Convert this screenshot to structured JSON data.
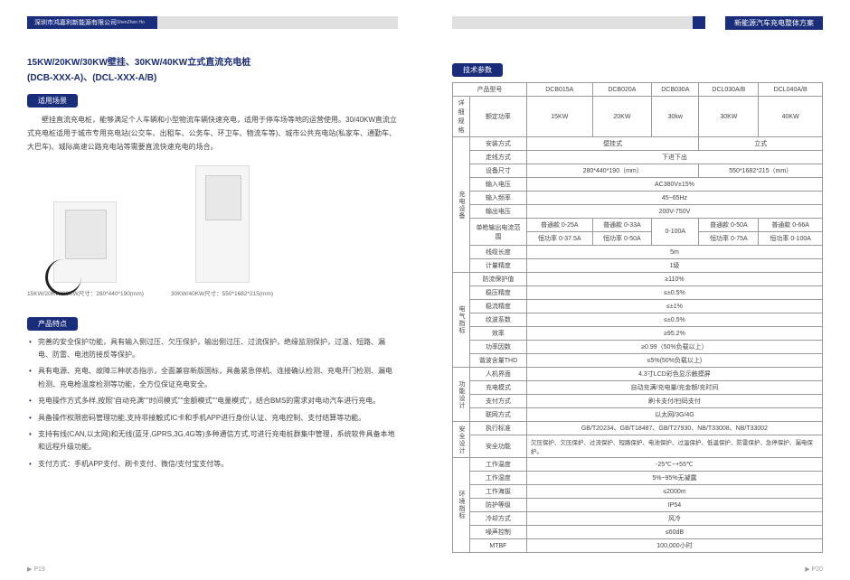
{
  "header": {
    "company_cn": "深圳市鸿嘉利新能源有限公司",
    "company_en": "ShenZhen HongJiaLi New Energy Co.,Ltd",
    "doc_title": "新能源汽车充电整体方案"
  },
  "product": {
    "title1": "15KW/20KW/30KW壁挂、30KW/40KW立式直流充电桩",
    "title2": "(DCB-XXX-A)、(DCL-XXX-A/B)"
  },
  "sections": {
    "scene": "适用场景",
    "features": "产品特点",
    "params": "技术参数"
  },
  "scene_text": "壁挂直流充电桩，能够满足个人车辆和小型物流车辆快速充电，适用于停车场等地的运营使用。30/40KW直流立式充电桩适用于城市专用充电站(公交车、出租车、公务车、环卫车、物流车等)、城市公共充电站(私家车、通勤车、大巴车)、城际高速公路充电站等需要直流快速充电的场合。",
  "captions": {
    "wall": "15KW/20KW/30KW尺寸：280*440*190(mm)",
    "stand": "30KW/40KW尺寸：550*1682*215(mm)"
  },
  "features": [
    "完善的安全保护功能，具有输入侧过压、欠压保护，输出侧过压、过流保护，绝缘监测保护，过温、短路、漏电、防雷、电池防接反等保护。",
    "具有电源、充电、故障三种状态指示，全面兼容新版国标，具备紧急停机、连接确认检测、充电开门检测、漏电检测、充电枪温度检测等功能，全方位保证充电安全。",
    "充电操作方式多样,按照\"自动充满\"\"时间模式\"\"金额模式\"\"电量模式\"，结合BMS的需求对电动汽车进行充电。",
    "具备操作权限密码管理功能,支持非接触式IC卡和手机APP进行身份认证、充电控制、支付结算等功能。",
    "支持有线(CAN,以太网)和无线(蓝牙,GPRS,3G,4G等)多种通信方式,可进行充电桩群集中管理，系统软件具备本地和远程升级功能。",
    "支付方式：手机APP支付、刷卡支付、微信/支付宝支付等。"
  ],
  "table": {
    "h_model": "产品型号",
    "models": [
      "DCB015A",
      "DCB020A",
      "DCB030A",
      "DCL030A/B",
      "DCL040A/B"
    ],
    "h_spec": "详细规格",
    "h_power": "额定功率",
    "powers": [
      "15KW",
      "20KW",
      "30kw",
      "30KW",
      "40KW"
    ],
    "cat_device": "充电设备",
    "r_install": "安装方式",
    "v_install_wall": "壁挂式",
    "v_install_stand": "立式",
    "r_wire": "走线方式",
    "v_wire": "下进下出",
    "r_size": "设备尺寸",
    "v_size1": "280*440*190（mm）",
    "v_size2": "550*1682*215（mm）",
    "r_vin": "输入电压",
    "v_vin": "AC380V±15%",
    "r_freq": "输入频率",
    "v_freq": "45~65Hz",
    "r_vout": "输出电压",
    "v_vout": "200V-750V",
    "r_iout": "单枪输出电流范围",
    "iout_n": "普通款",
    "iout_h": "恒功率",
    "iout": {
      "n1": "0-25A",
      "h1": "0-37.5A",
      "n2": "0-33A",
      "h2": "0-50A",
      "m": "0-100A",
      "n4": "0-50A",
      "h4": "0-75A",
      "n5": "0-66A",
      "h5": "0-100A"
    },
    "r_cable": "线缆长度",
    "v_cable": "5m",
    "r_meter": "计量精度",
    "v_meter": "1级",
    "cat_elec": "电气指标",
    "r_ov": "防流保护值",
    "v_ov": "≥110%",
    "r_vacc": "稳压精度",
    "v_vacc": "≤±0.5%",
    "r_iacc": "稳流精度",
    "v_iacc": "≤±1%",
    "r_ripple": "纹波系数",
    "v_ripple": "≤±0.5%",
    "r_eff": "效率",
    "v_eff": "≥95.2%",
    "r_pf": "功率因数",
    "v_pf": "≥0.99（50%负载以上）",
    "r_thd": "谐波含量THD",
    "v_thd": "≤5%(50%负载以上)",
    "cat_func": "功能设计",
    "r_hmi": "人机界面",
    "v_hmi": "4.3寸LCD彩色显示触摸屏",
    "r_mode": "充电模式",
    "v_mode": "自动充满/充电量/充金额/充时间",
    "r_pay": "支付方式",
    "v_pay": "刷卡支付/扫码支付",
    "r_net": "联网方式",
    "v_net": "以太网/3G/4G",
    "cat_safe": "安全设计",
    "r_std": "执行标准",
    "v_std": "GB/T20234、GB/T18487、GB/T27930、NB/T33008、NB/T33002",
    "r_prot": "安全功能",
    "v_prot": "欠压保护、欠压保护、过流保护、短路保护、电池保护、过温保护、低温保护、防雷保护、急停保护、漏电保护。",
    "cat_env": "环境指标",
    "r_temp": "工作温度",
    "v_temp": "-25℃~+55℃",
    "r_hum": "工作湿度",
    "v_hum": "5%~95%无凝露",
    "r_alt": "工作海拔",
    "v_alt": "≤2000m",
    "r_ip": "防护等级",
    "v_ip": "IP54",
    "r_cool": "冷却方式",
    "v_cool": "风冷",
    "r_noise": "噪声控制",
    "v_noise": "≤60dB",
    "r_mtbf": "MTBF",
    "v_mtbf": "100,000小时"
  },
  "footer": {
    "left": "▶ P19",
    "right": "▶ P20"
  }
}
